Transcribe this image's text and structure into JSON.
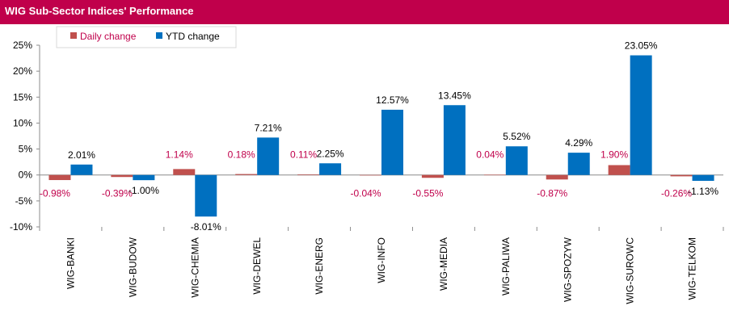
{
  "header": {
    "title": "WIG Sub-Sector Indices' Performance"
  },
  "chart_data": {
    "type": "bar",
    "title": "WIG Sub-Sector Indices' Performance",
    "xlabel": "",
    "ylabel": "",
    "ylim": [
      -10,
      25
    ],
    "yticks": [
      -10,
      -5,
      0,
      5,
      10,
      15,
      20,
      25
    ],
    "ytick_labels": [
      "-10%",
      "-5%",
      "0%",
      "5%",
      "10%",
      "15%",
      "20%",
      "25%"
    ],
    "grid": false,
    "legend_position": "top-left",
    "categories": [
      "WIG-BANKI",
      "WIG-BUDOW",
      "WIG-CHEMIA",
      "WIG-DEWEL",
      "WIG-ENERG",
      "WIG-INFO",
      "WIG-MEDIA",
      "WIG-PALIWA",
      "WIG-SPOZYW",
      "WIG-SUROWC",
      "WIG-TELKOM"
    ],
    "series": [
      {
        "name": "Daily change",
        "color": "#c0504d",
        "label_color": "#c0004b",
        "values": [
          -0.98,
          -0.39,
          1.14,
          0.18,
          0.11,
          -0.04,
          -0.55,
          0.04,
          -0.87,
          1.9,
          -0.26
        ],
        "labels": [
          "-0.98%",
          "-0.39%",
          "1.14%",
          "0.18%",
          "0.11%",
          "-0.04%",
          "-0.55%",
          "0.04%",
          "-0.87%",
          "1.90%",
          "-0.26%"
        ]
      },
      {
        "name": "YTD change",
        "color": "#0070c0",
        "label_color": "#000000",
        "values": [
          2.01,
          -1.0,
          -8.01,
          7.21,
          2.25,
          12.57,
          13.45,
          5.52,
          4.29,
          23.05,
          -1.13
        ],
        "labels": [
          "2.01%",
          "-1.00%",
          "-8.01%",
          "7.21%",
          "2.25%",
          "12.57%",
          "13.45%",
          "5.52%",
          "4.29%",
          "23.05%",
          "-1.13%"
        ]
      }
    ]
  }
}
